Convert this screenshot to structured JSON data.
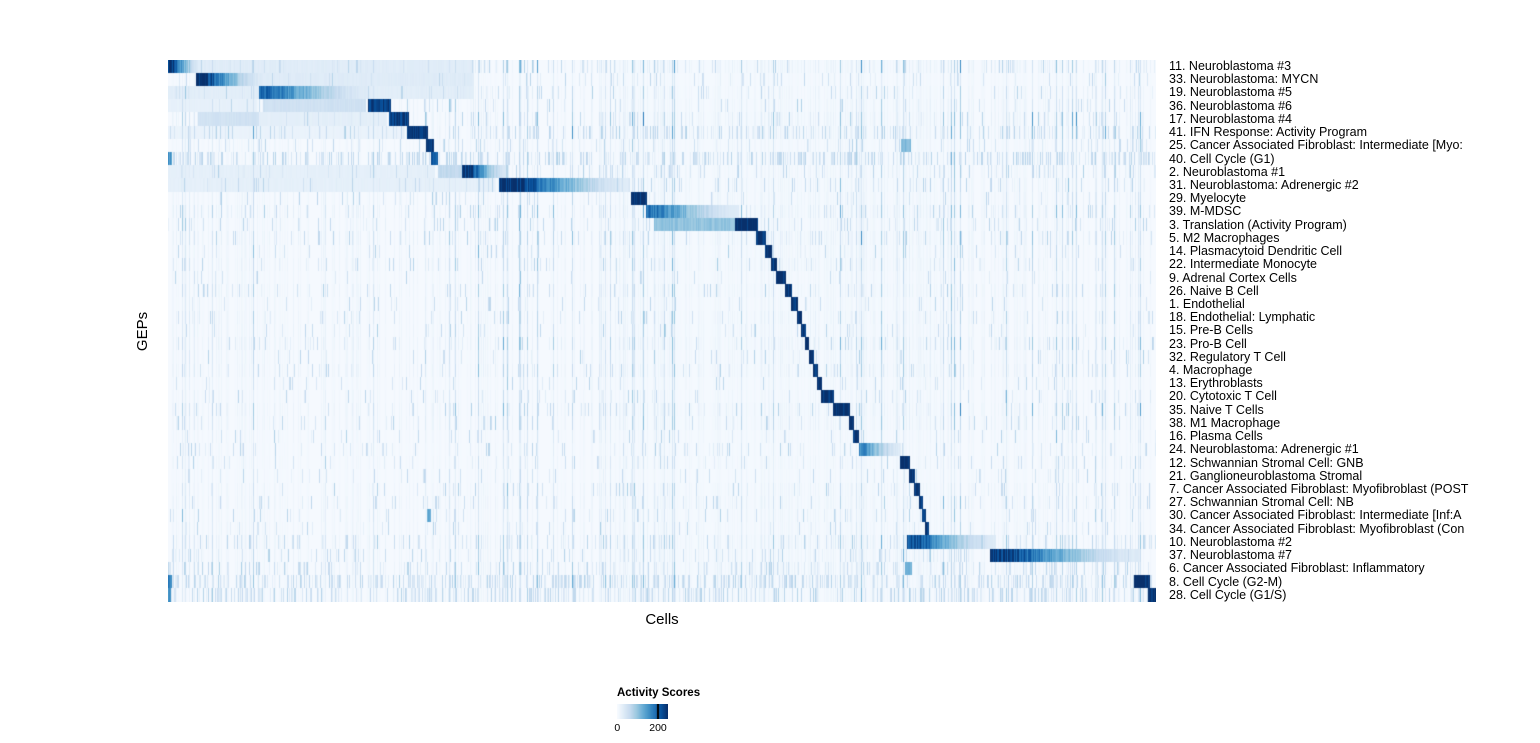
{
  "colors": {
    "colormap_name": "Blues",
    "colormap": [
      "#f7fbff",
      "#deebf7",
      "#c6dbef",
      "#9ecae1",
      "#6baed6",
      "#4292c6",
      "#2171b5",
      "#08519c",
      "#08306b"
    ],
    "background": "#ffffff",
    "text": "#000000",
    "legend_tick_mark": "#000000"
  },
  "chart_data": {
    "type": "heatmap",
    "title": "",
    "xlabel": "Cells",
    "ylabel": "GEPs",
    "legend_title": "Activity Scores",
    "legend_ticks": [
      "0",
      "200"
    ],
    "legend_tick_values": [
      0,
      200
    ],
    "value_range": [
      0,
      250
    ],
    "grid": false,
    "legend_position": "bottom",
    "row_label_position": "right",
    "rows": [
      {
        "label": "11. Neuroblastoma #3",
        "noise": 0.1,
        "segments": [
          [
            0.0,
            0.032,
            250,
            "f"
          ],
          [
            0.032,
            0.31,
            28,
            "s"
          ]
        ]
      },
      {
        "label": "33. Neuroblastoma: MYCN",
        "noise": 0.08,
        "segments": [
          [
            0.028,
            0.097,
            250,
            "f"
          ],
          [
            0.097,
            0.31,
            30,
            "s"
          ]
        ]
      },
      {
        "label": "19. Neuroblastoma #5",
        "noise": 0.08,
        "segments": [
          [
            0.0,
            0.092,
            26,
            "s"
          ],
          [
            0.092,
            0.205,
            190,
            "f"
          ],
          [
            0.205,
            0.31,
            26,
            "s"
          ]
        ]
      },
      {
        "label": "36. Neuroblastoma #6",
        "noise": 0.07,
        "segments": [
          [
            0.0,
            0.09,
            20,
            "s"
          ],
          [
            0.096,
            0.2,
            50,
            "s"
          ],
          [
            0.202,
            0.226,
            235,
            "s"
          ]
        ]
      },
      {
        "label": "17. Neuroblastoma #4",
        "noise": 0.07,
        "segments": [
          [
            0.03,
            0.092,
            48,
            "s"
          ],
          [
            0.092,
            0.222,
            24,
            "s"
          ],
          [
            0.224,
            0.244,
            235,
            "s"
          ]
        ]
      },
      {
        "label": "41. IFN Response: Activity Program",
        "noise": 0.22,
        "segments": [
          [
            0.0,
            0.24,
            16,
            "s"
          ],
          [
            0.242,
            0.263,
            250,
            "s"
          ]
        ]
      },
      {
        "label": "25. Cancer Associated Fibroblast: Intermediate [Myo:",
        "noise": 0.12,
        "segments": [
          [
            0.261,
            0.269,
            250,
            "s"
          ],
          [
            0.742,
            0.752,
            110,
            "s"
          ]
        ]
      },
      {
        "label": "40. Cell Cycle (G1)",
        "noise": 0.4,
        "segments": [
          [
            0.0,
            0.004,
            150,
            "s"
          ],
          [
            0.266,
            0.273,
            210,
            "s"
          ]
        ]
      },
      {
        "label": "2. Neuroblastoma #1",
        "noise": 0.12,
        "segments": [
          [
            0.0,
            0.27,
            22,
            "s"
          ],
          [
            0.273,
            0.298,
            65,
            "s"
          ],
          [
            0.298,
            0.345,
            250,
            "f"
          ]
        ]
      },
      {
        "label": "31. Neuroblastoma: Adrenergic #2",
        "noise": 0.1,
        "segments": [
          [
            0.0,
            0.33,
            22,
            "s"
          ],
          [
            0.335,
            0.468,
            250,
            "f"
          ]
        ]
      },
      {
        "label": "29. Myelocyte",
        "noise": 0.06,
        "segments": [
          [
            0.469,
            0.485,
            250,
            "s"
          ]
        ]
      },
      {
        "label": "39. M-MDSC",
        "noise": 0.07,
        "segments": [
          [
            0.484,
            0.578,
            180,
            "f"
          ]
        ]
      },
      {
        "label": "3. Translation (Activity Program)",
        "noise": 0.1,
        "segments": [
          [
            0.492,
            0.574,
            100,
            "s"
          ],
          [
            0.574,
            0.597,
            250,
            "s"
          ]
        ]
      },
      {
        "label": "5. M2 Macrophages",
        "noise": 0.06,
        "segments": [
          [
            0.595,
            0.605,
            250,
            "s"
          ]
        ]
      },
      {
        "label": "14. Plasmacytoid Dendritic Cell",
        "noise": 0.05,
        "segments": [
          [
            0.604,
            0.611,
            250,
            "s"
          ]
        ]
      },
      {
        "label": "22. Intermediate Monocyte",
        "noise": 0.05,
        "segments": [
          [
            0.61,
            0.616,
            250,
            "s"
          ]
        ]
      },
      {
        "label": "9. Adrenal Cortex Cells",
        "noise": 0.05,
        "segments": [
          [
            0.615,
            0.626,
            250,
            "s"
          ]
        ]
      },
      {
        "label": "26. Naive B Cell",
        "noise": 0.05,
        "segments": [
          [
            0.625,
            0.632,
            250,
            "s"
          ]
        ]
      },
      {
        "label": "1. Endothelial",
        "noise": 0.05,
        "segments": [
          [
            0.631,
            0.638,
            250,
            "s"
          ]
        ]
      },
      {
        "label": "18. Endothelial: Lymphatic",
        "noise": 0.05,
        "segments": [
          [
            0.637,
            0.642,
            250,
            "s"
          ]
        ]
      },
      {
        "label": "15. Pre-B Cells",
        "noise": 0.05,
        "segments": [
          [
            0.641,
            0.6455,
            250,
            "s"
          ]
        ]
      },
      {
        "label": "23. Pro-B Cell",
        "noise": 0.05,
        "segments": [
          [
            0.645,
            0.649,
            250,
            "s"
          ]
        ]
      },
      {
        "label": "32. Regulatory T Cell",
        "noise": 0.05,
        "segments": [
          [
            0.6485,
            0.654,
            250,
            "s"
          ]
        ]
      },
      {
        "label": "4. Macrophage",
        "noise": 0.05,
        "segments": [
          [
            0.653,
            0.658,
            250,
            "s"
          ]
        ]
      },
      {
        "label": "13. Erythroblasts",
        "noise": 0.05,
        "segments": [
          [
            0.657,
            0.6615,
            250,
            "s"
          ]
        ]
      },
      {
        "label": "20. Cytotoxic T Cell",
        "noise": 0.06,
        "segments": [
          [
            0.661,
            0.674,
            250,
            "s"
          ]
        ]
      },
      {
        "label": "35. Naive T Cells",
        "noise": 0.06,
        "segments": [
          [
            0.673,
            0.69,
            250,
            "s"
          ]
        ]
      },
      {
        "label": "38. M1 Macrophage",
        "noise": 0.05,
        "segments": [
          [
            0.689,
            0.694,
            250,
            "s"
          ]
        ]
      },
      {
        "label": "16. Plasma Cells",
        "noise": 0.05,
        "segments": [
          [
            0.693,
            0.699,
            250,
            "s"
          ]
        ]
      },
      {
        "label": "24. Neuroblastoma: Adrenergic #1",
        "noise": 0.08,
        "segments": [
          [
            0.699,
            0.742,
            160,
            "f"
          ]
        ]
      },
      {
        "label": "12. Schwannian Stromal Cell: GNB",
        "noise": 0.06,
        "segments": [
          [
            0.741,
            0.751,
            250,
            "s"
          ]
        ]
      },
      {
        "label": "21. Ganglioneuroblastoma Stromal",
        "noise": 0.06,
        "segments": [
          [
            0.75,
            0.756,
            250,
            "s"
          ]
        ]
      },
      {
        "label": "7. Cancer Associated Fibroblast: Myofibroblast (POST",
        "noise": 0.06,
        "segments": [
          [
            0.755,
            0.761,
            250,
            "s"
          ]
        ]
      },
      {
        "label": "27. Schwannian Stromal Cell: NB",
        "noise": 0.06,
        "segments": [
          [
            0.76,
            0.764,
            250,
            "s"
          ]
        ]
      },
      {
        "label": "30. Cancer Associated Fibroblast: Intermediate [Inf:A",
        "noise": 0.06,
        "segments": [
          [
            0.262,
            0.266,
            130,
            "s"
          ],
          [
            0.763,
            0.767,
            250,
            "s"
          ]
        ]
      },
      {
        "label": "34. Cancer Associated Fibroblast: Myofibroblast (Con",
        "noise": 0.06,
        "segments": [
          [
            0.766,
            0.77,
            250,
            "s"
          ]
        ]
      },
      {
        "label": "10. Neuroblastoma #2",
        "noise": 0.1,
        "segments": [
          [
            0.748,
            0.838,
            215,
            "f"
          ]
        ]
      },
      {
        "label": "37. Neuroblastoma #7",
        "noise": 0.1,
        "segments": [
          [
            0.832,
            0.985,
            230,
            "f"
          ]
        ]
      },
      {
        "label": "6. Cancer Associated Fibroblast: Inflammatory",
        "noise": 0.16,
        "segments": [
          [
            0.746,
            0.753,
            120,
            "s"
          ]
        ]
      },
      {
        "label": "8. Cell Cycle (G2-M)",
        "noise": 0.42,
        "segments": [
          [
            0.0,
            0.004,
            170,
            "s"
          ],
          [
            0.978,
            0.994,
            250,
            "s"
          ]
        ]
      },
      {
        "label": "28. Cell Cycle (G1/S)",
        "noise": 0.32,
        "segments": [
          [
            0.0,
            0.003,
            150,
            "s"
          ],
          [
            0.992,
            1.0,
            250,
            "s"
          ]
        ]
      }
    ]
  }
}
